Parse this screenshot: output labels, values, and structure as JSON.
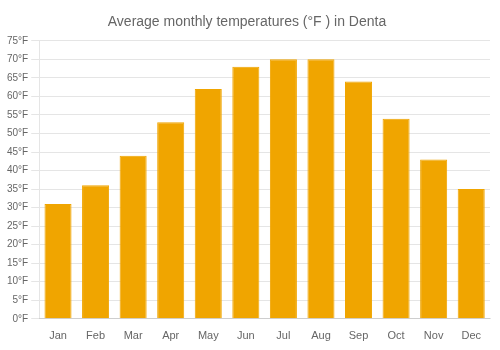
{
  "chart_data": {
    "type": "bar",
    "title": "Average monthly temperatures (°F ) in Denta",
    "categories": [
      "Jan",
      "Feb",
      "Mar",
      "Apr",
      "May",
      "Jun",
      "Jul",
      "Aug",
      "Sep",
      "Oct",
      "Nov",
      "Dec"
    ],
    "values": [
      31,
      36,
      44,
      53,
      62,
      68,
      70,
      70,
      64,
      54,
      43,
      35
    ],
    "color": "#F0A500",
    "ylim": [
      0,
      75
    ],
    "yticks": [
      {
        "value": 0,
        "label": "0°F"
      },
      {
        "value": 5,
        "label": "5°F"
      },
      {
        "value": 10,
        "label": "10°F"
      },
      {
        "value": 15,
        "label": "15°F"
      },
      {
        "value": 20,
        "label": "20°F"
      },
      {
        "value": 25,
        "label": "25°F"
      },
      {
        "value": 30,
        "label": "30°F"
      },
      {
        "value": 35,
        "label": "35°F"
      },
      {
        "value": 40,
        "label": "40°F"
      },
      {
        "value": 45,
        "label": "45°F"
      },
      {
        "value": 50,
        "label": "50°F"
      },
      {
        "value": 55,
        "label": "55°F"
      },
      {
        "value": 60,
        "label": "60°F"
      },
      {
        "value": 65,
        "label": "65°F"
      },
      {
        "value": 70,
        "label": "70°F"
      },
      {
        "value": 75,
        "label": "75°F"
      }
    ],
    "grid": true
  }
}
